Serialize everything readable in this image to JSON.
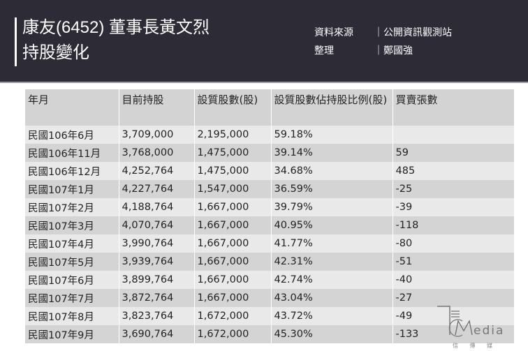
{
  "header": {
    "title_line1": "康友(6452) 董事長黃文烈",
    "title_line2": "持股變化",
    "source_label": "資料來源",
    "source_value": "｜公開資訊觀測站",
    "editor_label": "整理",
    "editor_value": "｜鄭國強"
  },
  "table": {
    "columns": [
      "年月",
      "目前持股",
      "設質股數(股)",
      "設質股數佔持股比例(股)",
      "買賣張數"
    ],
    "rows": [
      [
        "民國106年6月",
        "3,709,000",
        "2,195,000",
        "59.18%",
        ""
      ],
      [
        "民國106年11月",
        "3,768,000",
        "1,475,000",
        "39.14%",
        "59"
      ],
      [
        "民國106年12月",
        "4,252,764",
        "1,475,000",
        "34.68%",
        "485"
      ],
      [
        "民國107年1月",
        "4,227,764",
        "1,547,000",
        "36.59%",
        "-25"
      ],
      [
        "民國107年2月",
        "4,188,764",
        "1,667,000",
        "39.79%",
        "-39"
      ],
      [
        "民國107年3月",
        "4,070,764",
        "1,667,000",
        "40.95%",
        "-118"
      ],
      [
        "民國107年4月",
        "3,990,764",
        "1,667,000",
        "41.77%",
        "-80"
      ],
      [
        "民國107年5月",
        "3,939,764",
        "1,667,000",
        "42.31%",
        "-51"
      ],
      [
        "民國107年6月",
        "3,899,764",
        "1,667,000",
        "42.74%",
        "-40"
      ],
      [
        "民國107年7月",
        "3,872,764",
        "1,667,000",
        "43.04%",
        "-27"
      ],
      [
        "民國107年8月",
        "3,823,764",
        "1,672,000",
        "43.72%",
        "-49"
      ],
      [
        "民國107年9月",
        "3,690,764",
        "1,672,000",
        "45.30%",
        "-133"
      ]
    ]
  },
  "logo": {
    "text": "CMedia",
    "subtitle": "信 傳 媒"
  }
}
